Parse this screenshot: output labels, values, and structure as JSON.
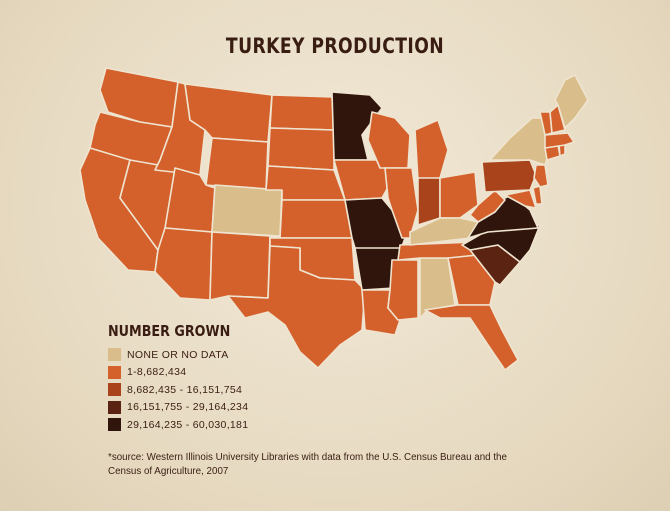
{
  "title": "TURKEY PRODUCTION",
  "legend": {
    "title": "NUMBER GROWN",
    "items": [
      {
        "label": "NONE OR NO DATA",
        "color": "#d9bd8a"
      },
      {
        "label": "1-8,682,434",
        "color": "#d4602c"
      },
      {
        "label": "8,682,435 - 16,151,754",
        "color": "#a8431b"
      },
      {
        "label": "16,151,755 - 29,164,234",
        "color": "#5b2412"
      },
      {
        "label": "29,164,235 - 60,030,181",
        "color": "#2f150c"
      }
    ]
  },
  "source": "*source: Western Illinois University Libraries with data from the U.S. Census Bureau and the Census of Agriculture, 2007",
  "state_categories": {
    "none": [
      "CO",
      "AL",
      "KY",
      "NY",
      "ME"
    ],
    "bin1": [
      "WA",
      "OR",
      "CA",
      "NV",
      "ID",
      "MT",
      "WY",
      "UT",
      "AZ",
      "NM",
      "ND",
      "SD",
      "NE",
      "KS",
      "OK",
      "TX",
      "IA",
      "WI",
      "IL",
      "LA",
      "MS",
      "GA",
      "FL",
      "TN",
      "MI",
      "OH",
      "WV",
      "MD",
      "DE",
      "NJ",
      "CT",
      "RI",
      "MA",
      "VT",
      "NH"
    ],
    "bin2": [
      "IN",
      "PA"
    ],
    "bin3": [
      "SC"
    ],
    "bin4": [
      "MN",
      "MO",
      "AR",
      "VA",
      "NC"
    ]
  }
}
